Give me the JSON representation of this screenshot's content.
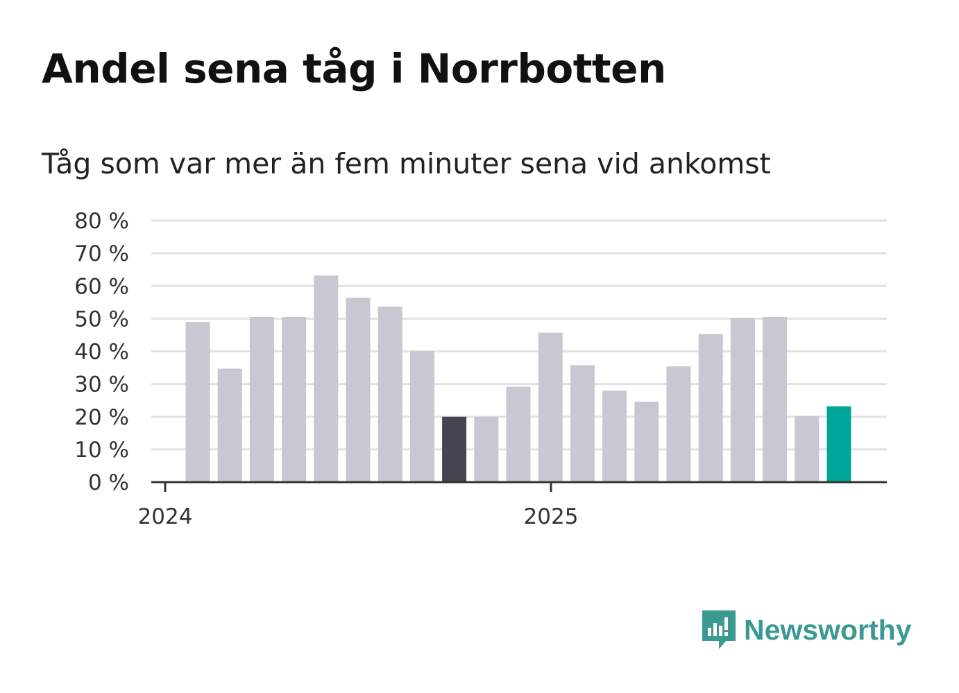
{
  "title": "Andel sena tåg i Norrbotten",
  "subtitle": "Tåg som var mer än fem minuter sena vid ankomst",
  "brand": {
    "name": "Newsworthy",
    "color": "#3a9a93",
    "icon": "newsworthy-logo-icon"
  },
  "colors": {
    "default_bar": "#c8c7d2",
    "highlight_prev": "#464451",
    "highlight_current": "#00a59a",
    "grid": "#e2e2e2",
    "axis": "#333333"
  },
  "chart_data": {
    "type": "bar",
    "title": "Andel sena tåg i Norrbotten",
    "subtitle": "Tåg som var mer än fem minuter sena vid ankomst",
    "xlabel": "",
    "ylabel": "",
    "ylim": [
      0,
      80
    ],
    "yticks": [
      0,
      10,
      20,
      30,
      40,
      50,
      60,
      70,
      80
    ],
    "ytick_labels": [
      "0 %",
      "10 %",
      "20 %",
      "30 %",
      "40 %",
      "50 %",
      "60 %",
      "70 %",
      "80 %"
    ],
    "xtick_labels": [
      "2024",
      "2025"
    ],
    "grid": true,
    "categories": [
      "2024-01",
      "2024-02",
      "2024-03",
      "2024-04",
      "2024-05",
      "2024-06",
      "2024-07",
      "2024-08",
      "2024-09",
      "2024-10",
      "2024-11",
      "2024-12",
      "2025-01",
      "2025-02",
      "2025-03",
      "2025-04",
      "2025-05",
      "2025-06",
      "2025-07",
      "2025-08",
      "2025-09"
    ],
    "values": [
      49,
      34.7,
      50.5,
      50.5,
      63.2,
      56.4,
      53.7,
      40.1,
      20,
      20,
      29.2,
      45.7,
      35.8,
      28,
      24.6,
      35.4,
      45.3,
      50.2,
      50.5,
      20.2,
      23.2
    ],
    "highlight": {
      "2024-09": "previous",
      "2025-09": "current"
    }
  }
}
